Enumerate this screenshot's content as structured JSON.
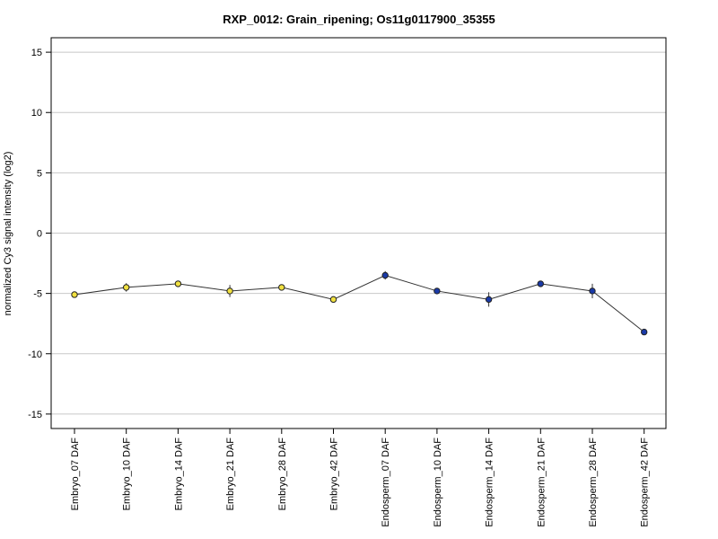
{
  "chart_data": {
    "type": "line",
    "title": "RXP_0012: Grain_ripening; Os11g0117900_35355",
    "xlabel": "",
    "ylabel": "normalized Cy3 signal intensity (log2)",
    "ylim": [
      -16.2,
      16.2
    ],
    "yticks": [
      15,
      10,
      5,
      0,
      -5,
      -10,
      -15
    ],
    "grid": true,
    "categories": [
      "Embryo_07 DAF",
      "Embryo_10 DAF",
      "Embryo_14 DAF",
      "Embryo_21 DAF",
      "Embryo_28 DAF",
      "Embryo_42 DAF",
      "Endosperm_07 DAF",
      "Endosperm_10 DAF",
      "Endosperm_14 DAF",
      "Endosperm_21 DAF",
      "Endosperm_28 DAF",
      "Endosperm_42 DAF"
    ],
    "series": [
      {
        "values": [
          -5.1,
          -4.5,
          -4.2,
          -4.8,
          -4.5,
          -5.5,
          -3.5,
          -4.8,
          -5.5,
          -4.2,
          -4.8,
          -8.2
        ],
        "error": [
          0.1,
          0.35,
          0.1,
          0.5,
          0.2,
          0.15,
          0.35,
          0.2,
          0.6,
          0.15,
          0.6,
          0.2
        ],
        "marker_colors": [
          "#f0e040",
          "#f0e040",
          "#f0e040",
          "#f0e040",
          "#f0e040",
          "#f0e040",
          "#1a3aa8",
          "#1a3aa8",
          "#1a3aa8",
          "#1a3aa8",
          "#1a3aa8",
          "#1a3aa8"
        ]
      }
    ],
    "colors": {
      "line": "#333333",
      "grid": "#c8c8c8",
      "axis": "#000000",
      "marker_edge": "#222222"
    }
  }
}
